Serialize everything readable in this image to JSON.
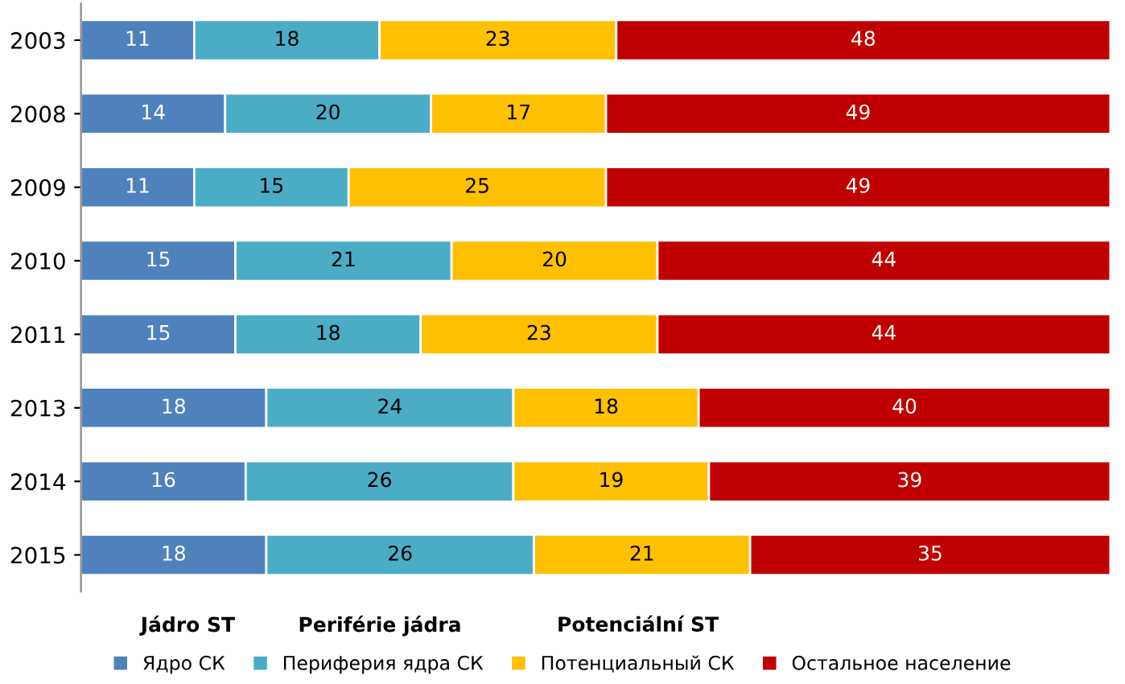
{
  "chart_data": {
    "type": "bar",
    "orientation": "horizontal",
    "stacked": true,
    "data_labels": true,
    "legend": "bottom",
    "grid": false,
    "tick_labels": "y",
    "xlim": [
      0,
      100
    ],
    "categories": [
      "2003",
      "2008",
      "2009",
      "2010",
      "2011",
      "2013",
      "2014",
      "2015"
    ],
    "series": [
      {
        "name": "Ядро СК",
        "color": "#4f81bd",
        "values": [
          11,
          14,
          11,
          15,
          15,
          18,
          16,
          18
        ]
      },
      {
        "name": "Периферия ядра СК",
        "color": "#4bacc6",
        "values": [
          18,
          20,
          15,
          21,
          18,
          24,
          26,
          26
        ]
      },
      {
        "name": "Потенциальный СК",
        "color": "#ffc000",
        "values": [
          23,
          17,
          25,
          20,
          23,
          18,
          19,
          21
        ]
      },
      {
        "name": "Остальное население",
        "color": "#c00000",
        "values": [
          48,
          49,
          49,
          44,
          44,
          40,
          39,
          35
        ]
      }
    ],
    "annotations": [
      "Jádro ST",
      "Periférie jádra",
      "Potenciální ST"
    ]
  }
}
